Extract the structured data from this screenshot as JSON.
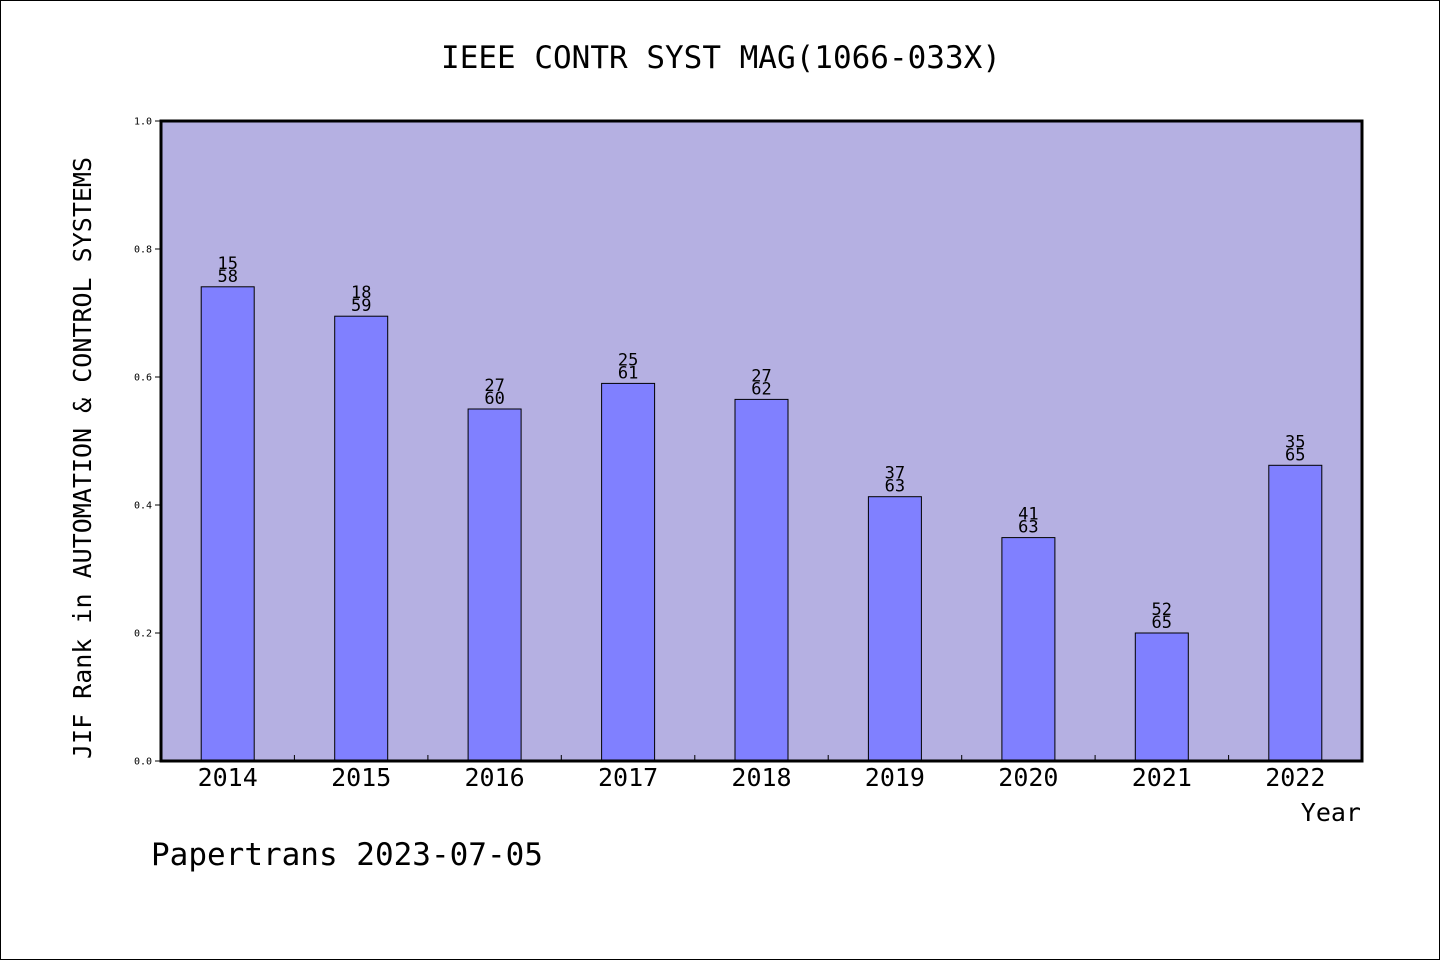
{
  "chart_data": {
    "type": "bar",
    "title": "IEEE CONTR SYST MAG(1066-033X)",
    "xlabel": "Year",
    "ylabel": "JIF Rank in AUTOMATION & CONTROL SYSTEMS",
    "categories": [
      "2014",
      "2015",
      "2016",
      "2017",
      "2018",
      "2019",
      "2020",
      "2021",
      "2022"
    ],
    "values": [
      0.741,
      0.695,
      0.55,
      0.59,
      0.565,
      0.413,
      0.349,
      0.2,
      0.462
    ],
    "rank_labels": [
      [
        "15",
        "58"
      ],
      [
        "18",
        "59"
      ],
      [
        "27",
        "60"
      ],
      [
        "25",
        "61"
      ],
      [
        "27",
        "62"
      ],
      [
        "37",
        "63"
      ],
      [
        "41",
        "63"
      ],
      [
        "52",
        "65"
      ],
      [
        "35",
        "65"
      ]
    ],
    "ylim": [
      0,
      1.0
    ],
    "yticks": [
      "0.0",
      "0.2",
      "0.4",
      "0.6",
      "0.8",
      "1.0"
    ],
    "grid": false,
    "legend": "none",
    "colors": {
      "plot_bg": "#b5b0e2",
      "bar": "#8080ff",
      "bar_edge": "#000000"
    }
  },
  "footer": {
    "credit": "Papertrans 2023-07-05"
  }
}
